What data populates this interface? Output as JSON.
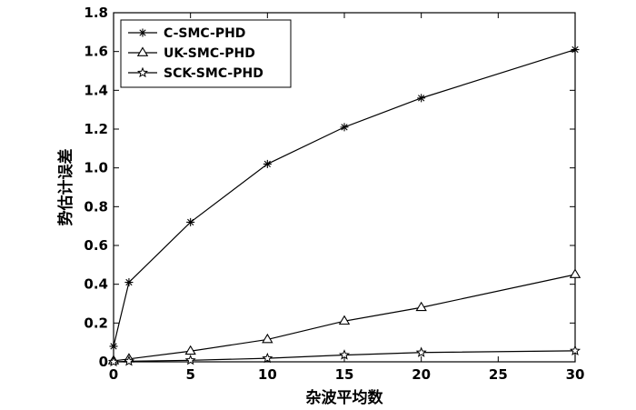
{
  "chart_data": {
    "type": "line",
    "xlabel": "杂波平均数",
    "ylabel": "势估计误差",
    "xlim": [
      0,
      30
    ],
    "ylim": [
      0,
      1.8
    ],
    "xticks": [
      "0",
      "5",
      "10",
      "15",
      "20",
      "25",
      "30"
    ],
    "yticks": [
      "0",
      "0.2",
      "0.4",
      "0.6",
      "0.8",
      "1.0",
      "1.2",
      "1.4",
      "1.6",
      "1.8"
    ],
    "grid": false,
    "legend_position": "top-left",
    "x": [
      0,
      1,
      5,
      10,
      15,
      20,
      30
    ],
    "series": [
      {
        "name": "C-SMC-PHD",
        "marker": "asterisk",
        "values": [
          0.08,
          0.41,
          0.72,
          1.02,
          1.21,
          1.36,
          1.61
        ]
      },
      {
        "name": "UK-SMC-PHD",
        "marker": "triangle",
        "values": [
          0.005,
          0.015,
          0.055,
          0.115,
          0.21,
          0.28,
          0.45
        ]
      },
      {
        "name": "SCK-SMC-PHD",
        "marker": "star",
        "values": [
          0.0,
          0.003,
          0.008,
          0.018,
          0.035,
          0.048,
          0.057
        ]
      }
    ]
  }
}
